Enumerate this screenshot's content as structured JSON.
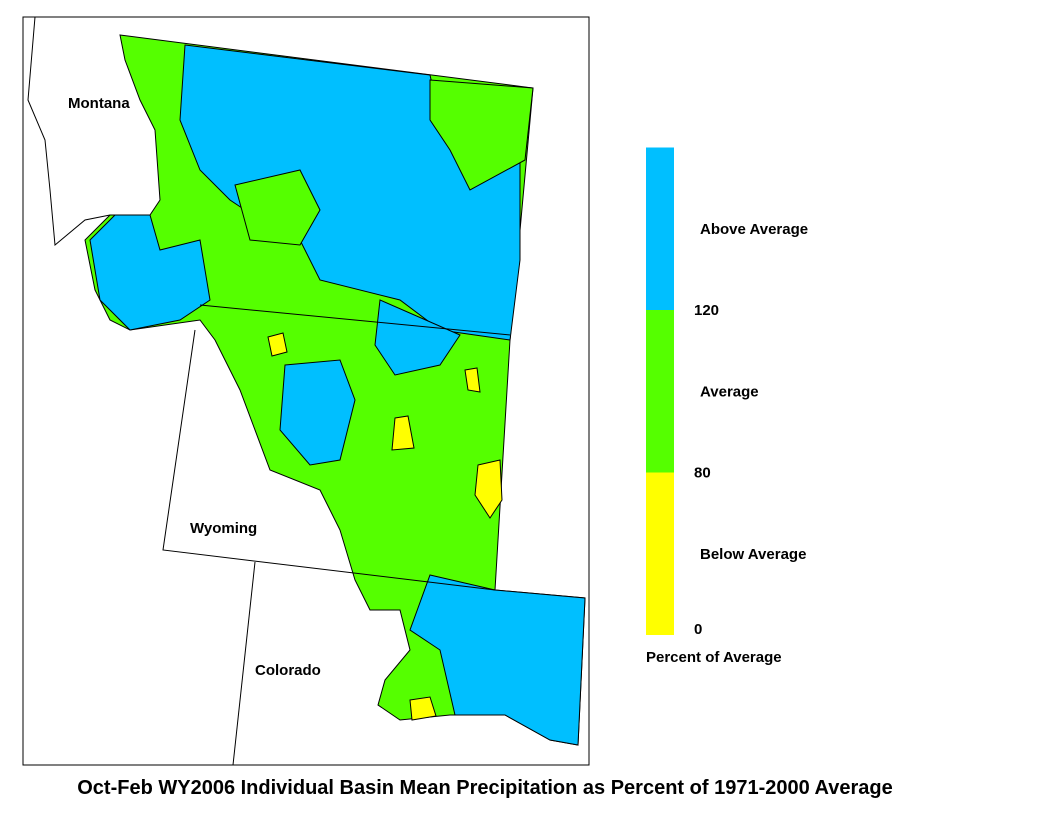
{
  "map": {
    "title": "Oct-Feb WY2006 Individual Basin Mean Precipitation as Percent of 1971-2000 Average",
    "states": [
      "Montana",
      "Wyoming",
      "Colorado"
    ],
    "legend": {
      "title": "Percent of Average",
      "classes": [
        {
          "label": "Below Average",
          "color": "#ffff00"
        },
        {
          "label": "Average",
          "color": "#55ff00"
        },
        {
          "label": "Above Average",
          "color": "#00bfff"
        }
      ],
      "ticks": [
        0,
        80,
        120
      ]
    }
  }
}
